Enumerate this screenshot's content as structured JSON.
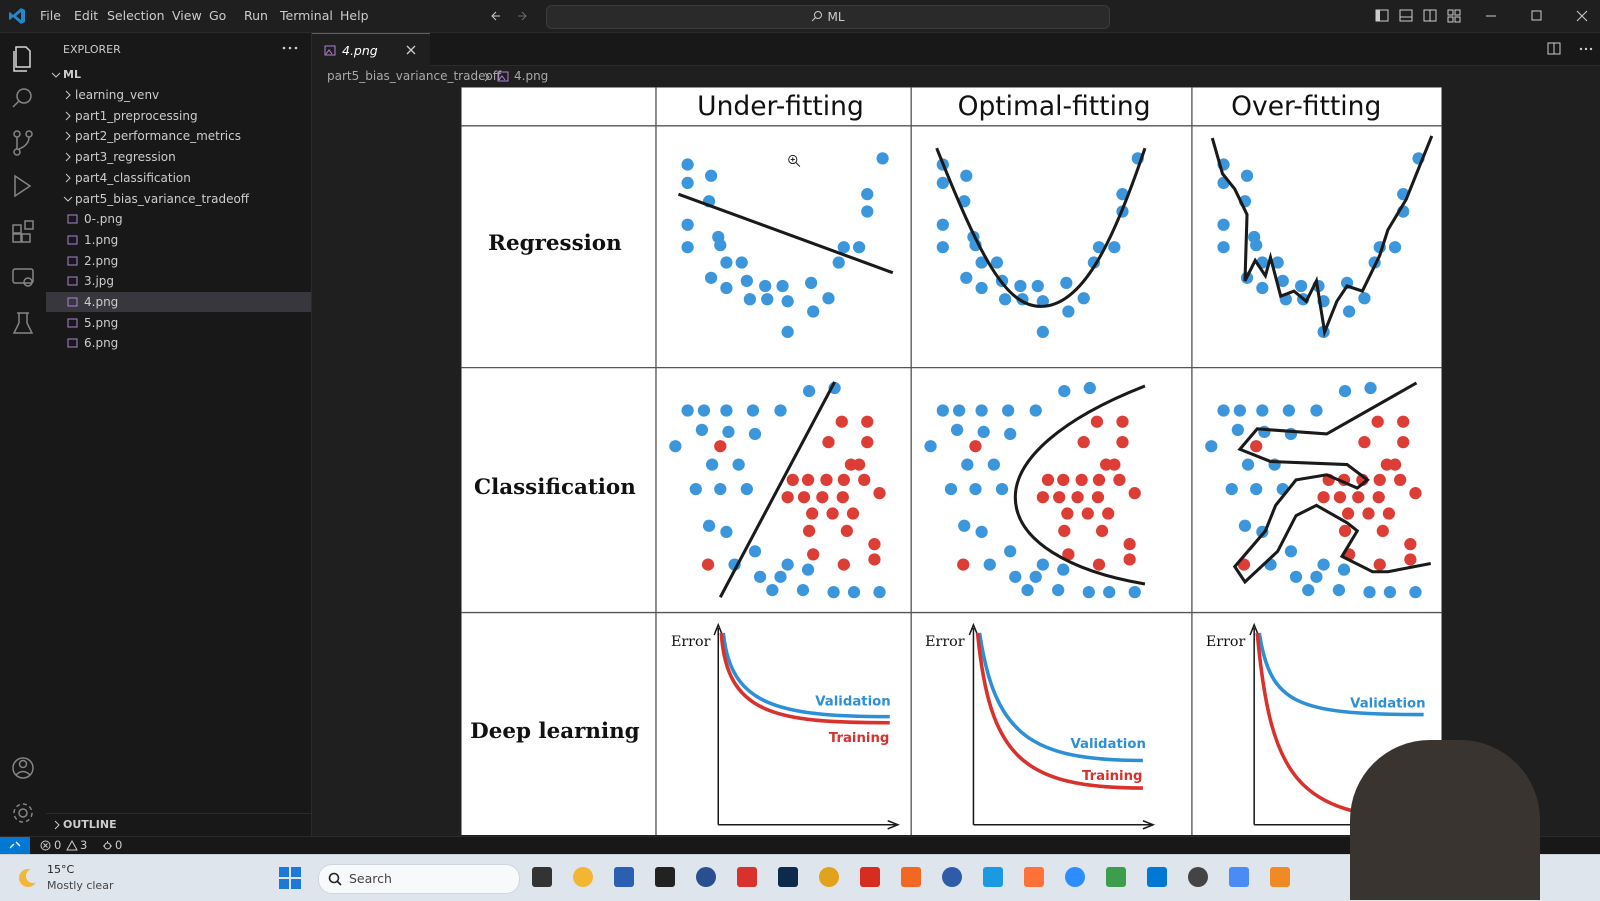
{
  "titlebar": {
    "menu": [
      "File",
      "Edit",
      "Selection",
      "View",
      "Go",
      "Run",
      "Terminal",
      "Help"
    ],
    "search": "ML"
  },
  "explorer": {
    "title": "EXPLORER",
    "root": "ML",
    "folders": [
      "learning_venv",
      "part1_preprocessing",
      "part2_performance_metrics",
      "part3_regression",
      "part4_classification"
    ],
    "open_folder": "part5_bias_variance_tradeoff",
    "files": [
      "0-.png",
      "1.png",
      "2.png",
      "3.jpg",
      "4.png",
      "5.png",
      "6.png"
    ],
    "outline": "OUTLINE"
  },
  "editor": {
    "tab": "4.png",
    "breadcrumb": [
      "part5_bias_variance_tradeoff",
      "4.png"
    ]
  },
  "image": {
    "columns": [
      "Under-fitting",
      "Optimal-fitting",
      "Over-fitting"
    ],
    "rows": [
      "Regression",
      "Classification",
      "Deep learning"
    ],
    "axis_label": "Error",
    "curves": [
      "Validation",
      "Training"
    ]
  },
  "status": {
    "errors": 0,
    "warnings": 3,
    "ports": 0
  },
  "taskbar": {
    "temperature": "15°C",
    "weather": "Mostly clear",
    "search": "Search"
  }
}
